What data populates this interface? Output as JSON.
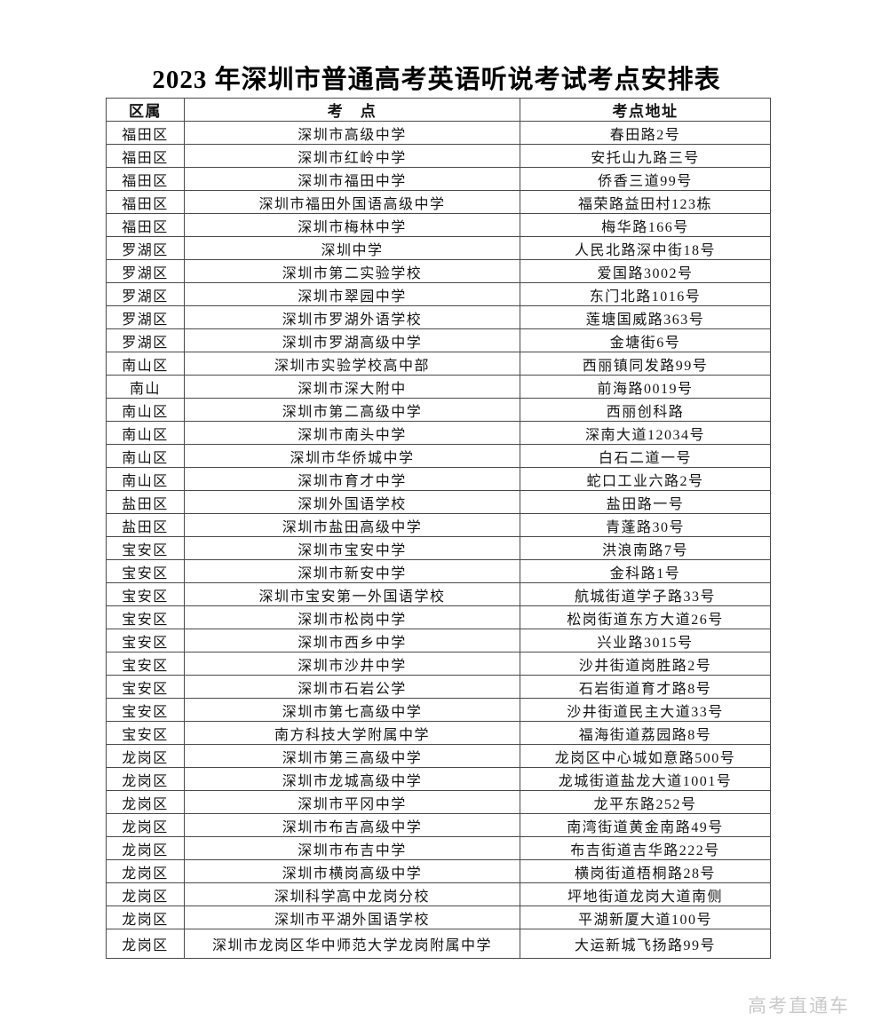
{
  "page": {
    "title": "2023 年深圳市普通高考英语听说考试考点安排表",
    "watermark": "高考直通车"
  },
  "table": {
    "headers": [
      "区属",
      "考　点",
      "考点地址"
    ],
    "rows": [
      [
        "福田区",
        "深圳市高级中学",
        "春田路2号"
      ],
      [
        "福田区",
        "深圳市红岭中学",
        "安托山九路三号"
      ],
      [
        "福田区",
        "深圳市福田中学",
        "侨香三道99号"
      ],
      [
        "福田区",
        "深圳市福田外国语高级中学",
        "福荣路益田村123栋"
      ],
      [
        "福田区",
        "深圳市梅林中学",
        "梅华路166号"
      ],
      [
        "罗湖区",
        "深圳中学",
        "人民北路深中街18号"
      ],
      [
        "罗湖区",
        "深圳市第二实验学校",
        "爱国路3002号"
      ],
      [
        "罗湖区",
        "深圳市翠园中学",
        "东门北路1016号"
      ],
      [
        "罗湖区",
        "深圳市罗湖外语学校",
        "莲塘国威路363号"
      ],
      [
        "罗湖区",
        "深圳市罗湖高级中学",
        "金塘街6号"
      ],
      [
        "南山区",
        "深圳市实验学校高中部",
        "西丽镇同发路99号"
      ],
      [
        "南山",
        "深圳市深大附中",
        "前海路0019号"
      ],
      [
        "南山区",
        "深圳市第二高级中学",
        "西丽创科路"
      ],
      [
        "南山区",
        "深圳市南头中学",
        "深南大道12034号"
      ],
      [
        "南山区",
        "深圳市华侨城中学",
        "白石二道一号"
      ],
      [
        "南山区",
        "深圳市育才中学",
        "蛇口工业六路2号"
      ],
      [
        "盐田区",
        "深圳外国语学校",
        "盐田路一号"
      ],
      [
        "盐田区",
        "深圳市盐田高级中学",
        "青蓬路30号"
      ],
      [
        "宝安区",
        "深圳市宝安中学",
        "洪浪南路7号"
      ],
      [
        "宝安区",
        "深圳市新安中学",
        "金科路1号"
      ],
      [
        "宝安区",
        "深圳市宝安第一外国语学校",
        "航城街道学子路33号"
      ],
      [
        "宝安区",
        "深圳市松岗中学",
        "松岗街道东方大道26号"
      ],
      [
        "宝安区",
        "深圳市西乡中学",
        "兴业路3015号"
      ],
      [
        "宝安区",
        "深圳市沙井中学",
        "沙井街道岗胜路2号"
      ],
      [
        "宝安区",
        "深圳市石岩公学",
        "石岩街道育才路8号"
      ],
      [
        "宝安区",
        "深圳市第七高级中学",
        "沙井街道民主大道33号"
      ],
      [
        "宝安区",
        "南方科技大学附属中学",
        "福海街道荔园路8号"
      ],
      [
        "龙岗区",
        "深圳市第三高级中学",
        "龙岗区中心城如意路500号"
      ],
      [
        "龙岗区",
        "深圳市龙城高级中学",
        "龙城街道盐龙大道1001号"
      ],
      [
        "龙岗区",
        "深圳市平冈中学",
        "龙平东路252号"
      ],
      [
        "龙岗区",
        "深圳市布吉高级中学",
        "南湾街道黄金南路49号"
      ],
      [
        "龙岗区",
        "深圳市布吉中学",
        "布吉街道吉华路222号"
      ],
      [
        "龙岗区",
        "深圳市横岗高级中学",
        "横岗街道梧桐路28号"
      ],
      [
        "龙岗区",
        "深圳科学高中龙岗分校",
        "坪地街道龙岗大道南侧"
      ],
      [
        "龙岗区",
        "深圳市平湖外国语学校",
        "平湖新厦大道100号"
      ],
      [
        "龙岗区",
        "深圳市龙岗区华中师范大学龙岗附属中学",
        "大运新城飞扬路99号"
      ]
    ]
  }
}
